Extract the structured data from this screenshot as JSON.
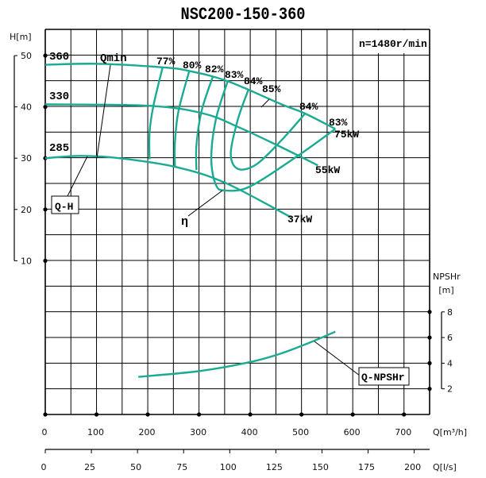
{
  "chart_data": {
    "type": "line",
    "title": "NSC200-150-360",
    "speed_label": "n=1480r/min",
    "x_axis": {
      "label": "Q[m³/h]",
      "range": [
        0,
        750
      ],
      "ticks": [
        "0",
        "100",
        "200",
        "300",
        "400",
        "500",
        "600",
        "700"
      ],
      "tick_values": [
        0,
        100,
        200,
        300,
        400,
        500,
        600,
        700
      ],
      "grid_step": 50
    },
    "x2_axis": {
      "label": "Q[l/s]",
      "range": [
        0,
        208.3
      ],
      "ticks": [
        "0",
        "25",
        "50",
        "75",
        "100",
        "125",
        "150",
        "175",
        "200"
      ],
      "tick_values": [
        0,
        25,
        50,
        75,
        100,
        125,
        150,
        175,
        200
      ]
    },
    "y_axis": {
      "label": "H[m]",
      "range": [
        -20,
        55
      ],
      "ticks": [
        "10",
        "20",
        "30",
        "40",
        "50"
      ],
      "tick_values": [
        10,
        20,
        30,
        40,
        50
      ],
      "grid_step": 5
    },
    "y2_axis": {
      "label_line1": "NPSHr",
      "label_line2": "[m]",
      "range": [
        0,
        8
      ],
      "ticks": [
        "2",
        "4",
        "6",
        "8"
      ],
      "tick_values": [
        2,
        4,
        6,
        8
      ]
    },
    "grid": true,
    "colors": {
      "curve": "#1aab92",
      "grid": "#000000"
    },
    "head_curves": [
      {
        "name": "360",
        "power": "75kW",
        "points": [
          [
            0,
            48.2
          ],
          [
            100,
            48.4
          ],
          [
            229,
            47.7
          ],
          [
            281,
            47.0
          ],
          [
            356,
            45.0
          ],
          [
            461,
            40.5
          ],
          [
            507,
            38.7
          ],
          [
            566,
            35.7
          ]
        ]
      },
      {
        "name": "330",
        "power": "55kW",
        "points": [
          [
            0,
            40.5
          ],
          [
            205,
            40.2
          ],
          [
            309,
            38.7
          ],
          [
            376,
            36.1
          ],
          [
            449,
            32.7
          ],
          [
            532,
            28.6
          ]
        ]
      },
      {
        "name": "285",
        "power": "37kW",
        "points": [
          [
            0,
            30.0
          ],
          [
            70,
            30.45
          ],
          [
            144,
            30.0
          ],
          [
            254,
            28.3
          ],
          [
            351,
            25.2
          ],
          [
            479,
            18.5
          ]
        ]
      }
    ],
    "efficiency_contours": [
      {
        "label": "77%",
        "points": [
          [
            229,
            47.7
          ],
          [
            211,
            40.2
          ],
          [
            203.5,
            35.0
          ],
          [
            203.5,
            29.8
          ]
        ]
      },
      {
        "label": "80%",
        "points": [
          [
            281,
            47.0
          ],
          [
            260,
            39.2
          ],
          [
            253,
            33.0
          ],
          [
            253,
            28.3
          ]
        ]
      },
      {
        "label": "82%",
        "points": [
          [
            327,
            45.9
          ],
          [
            305,
            39.2
          ],
          [
            295,
            32.5
          ],
          [
            295,
            27.7
          ]
        ]
      },
      {
        "label": "83%",
        "label_right": "83%",
        "points": [
          [
            356,
            45.0
          ],
          [
            333,
            37.6
          ],
          [
            324,
            29.9
          ],
          [
            333,
            24.8
          ],
          [
            351,
            23.7
          ],
          [
            400,
            24.5
          ],
          [
            492,
            30.4
          ],
          [
            566,
            35.7
          ]
        ]
      },
      {
        "label": "84%",
        "label_right": "84%",
        "points": [
          [
            397,
            43.5
          ],
          [
            376,
            37.6
          ],
          [
            362,
            30.9
          ],
          [
            376,
            27.9
          ],
          [
            412,
            28.8
          ],
          [
            461,
            33.5
          ],
          [
            507,
            38.7
          ]
        ]
      },
      {
        "label": "85%"
      }
    ],
    "npsh_curve": {
      "name": "Q-NPSHr",
      "points": [
        [
          181.6,
          2.93
        ],
        [
          302,
          3.39
        ],
        [
          400,
          4.09
        ],
        [
          461,
          4.77
        ],
        [
          522,
          5.7
        ],
        [
          566,
          6.46
        ]
      ]
    },
    "annotations": {
      "qmin": "Qmin",
      "qh": "Q-H",
      "eta": "η",
      "qnpsh": "Q-NPSHr"
    }
  }
}
